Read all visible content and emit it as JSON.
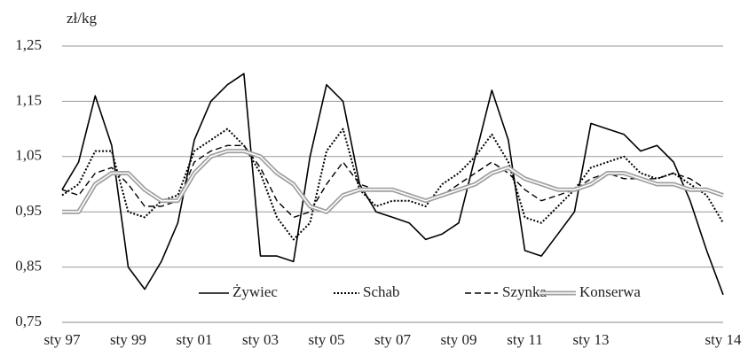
{
  "chart_data": {
    "type": "line",
    "y_unit": "zł/kg",
    "categories": [
      "sty 97",
      null,
      null,
      null,
      "sty 99",
      null,
      null,
      null,
      "sty 01",
      null,
      null,
      null,
      "sty 03",
      null,
      null,
      null,
      "sty 05",
      null,
      null,
      null,
      "sty 07",
      null,
      null,
      null,
      "sty 09",
      null,
      null,
      null,
      "sty 11",
      null,
      null,
      null,
      "sty 13",
      null,
      null,
      null,
      null,
      null,
      null,
      null,
      "sty 14"
    ],
    "series": [
      {
        "name": "Żywiec",
        "color": "#000000",
        "style": "solid",
        "values": [
          0.99,
          1.04,
          1.16,
          1.07,
          0.85,
          0.81,
          0.86,
          0.93,
          1.08,
          1.15,
          1.18,
          1.2,
          0.87,
          0.87,
          0.86,
          1.05,
          1.18,
          1.15,
          1.0,
          0.95,
          0.94,
          0.93,
          0.9,
          0.91,
          0.93,
          1.05,
          1.17,
          1.08,
          0.88,
          0.87,
          0.91,
          0.95,
          1.11,
          1.1,
          1.09,
          1.06,
          1.07,
          1.04,
          0.97,
          0.88,
          0.8
        ]
      },
      {
        "name": "Schab",
        "color": "#000000",
        "style": "dotted",
        "values": [
          0.98,
          1.0,
          1.06,
          1.06,
          0.95,
          0.94,
          0.97,
          0.98,
          1.06,
          1.08,
          1.1,
          1.07,
          1.02,
          0.94,
          0.9,
          0.93,
          1.06,
          1.1,
          0.99,
          0.96,
          0.97,
          0.97,
          0.96,
          1.0,
          1.02,
          1.05,
          1.09,
          1.04,
          0.94,
          0.93,
          0.96,
          0.99,
          1.03,
          1.04,
          1.05,
          1.02,
          1.01,
          1.02,
          1.0,
          0.98,
          0.93
        ]
      },
      {
        "name": "Szynka",
        "color": "#000000",
        "style": "dashed",
        "values": [
          0.99,
          0.98,
          1.02,
          1.03,
          1.0,
          0.96,
          0.96,
          0.97,
          1.04,
          1.06,
          1.07,
          1.07,
          1.03,
          0.97,
          0.94,
          0.95,
          1.0,
          1.04,
          1.0,
          0.99,
          0.99,
          0.98,
          0.97,
          0.98,
          1.0,
          1.02,
          1.04,
          1.02,
          0.99,
          0.97,
          0.98,
          0.99,
          1.01,
          1.02,
          1.01,
          1.01,
          1.01,
          1.02,
          1.01,
          0.99,
          0.98
        ]
      },
      {
        "name": "Konserwa",
        "color": "#a0a0a0",
        "style": "double",
        "values": [
          0.95,
          0.95,
          1.0,
          1.02,
          1.02,
          0.99,
          0.97,
          0.97,
          1.02,
          1.05,
          1.06,
          1.06,
          1.05,
          1.02,
          1.0,
          0.96,
          0.95,
          0.98,
          0.99,
          0.99,
          0.99,
          0.98,
          0.97,
          0.98,
          0.99,
          1.0,
          1.02,
          1.03,
          1.01,
          1.0,
          0.99,
          0.99,
          1.0,
          1.02,
          1.02,
          1.01,
          1.0,
          1.0,
          0.99,
          0.99,
          0.98
        ]
      }
    ],
    "ylim": [
      0.75,
      1.25
    ],
    "yticks": [
      {
        "value": 0.75,
        "label": "0,75"
      },
      {
        "value": 0.85,
        "label": "0,85"
      },
      {
        "value": 0.95,
        "label": "0,95"
      },
      {
        "value": 1.05,
        "label": "1,05"
      },
      {
        "value": 1.15,
        "label": "1,15"
      },
      {
        "value": 1.25,
        "label": "1,25"
      }
    ],
    "grid": true,
    "legend": "bottom"
  }
}
